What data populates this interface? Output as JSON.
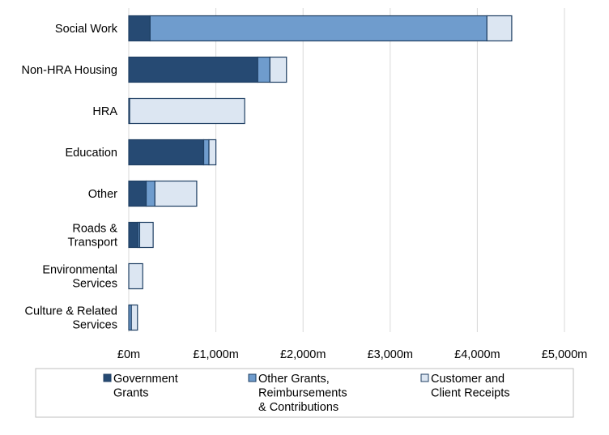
{
  "colors": {
    "government_grants": "#264a73",
    "other_grants": "#6f9ccd",
    "customer_receipts": "#dce6f2",
    "bar_outline": "#1f3f63",
    "gridline": "#d9d9d9",
    "legend_border": "#bfbfbf"
  },
  "chart_data": {
    "type": "bar",
    "orientation": "horizontal",
    "stacked": true,
    "categories": [
      "Social Work",
      "Non-HRA Housing",
      "HRA",
      "Education",
      "Other",
      "Roads &\nTransport",
      "Environmental\nServices",
      "Culture & Related\nServices"
    ],
    "series": [
      {
        "name": "Government\nGrants",
        "color": "#264a73",
        "values": [
          245,
          1480,
          10,
          860,
          200,
          105,
          0,
          0
        ]
      },
      {
        "name": "Other Grants,\nReimbursements\n& Contributions",
        "color": "#6f9ccd",
        "values": [
          3865,
          140,
          0,
          60,
          100,
          20,
          0,
          30
        ]
      },
      {
        "name": "Customer and\nClient Receipts",
        "color": "#dce6f2",
        "values": [
          285,
          190,
          1320,
          80,
          480,
          155,
          160,
          70
        ]
      }
    ],
    "xlim": [
      0,
      5000
    ],
    "xticks": [
      0,
      1000,
      2000,
      3000,
      4000,
      5000
    ],
    "xtick_labels": [
      "£0m",
      "£1,000m",
      "£2,000m",
      "£3,000m",
      "£4,000m",
      "£5,000m"
    ],
    "grid": "vertical",
    "legend_position": "bottom",
    "title": "",
    "xlabel": "",
    "ylabel": ""
  }
}
